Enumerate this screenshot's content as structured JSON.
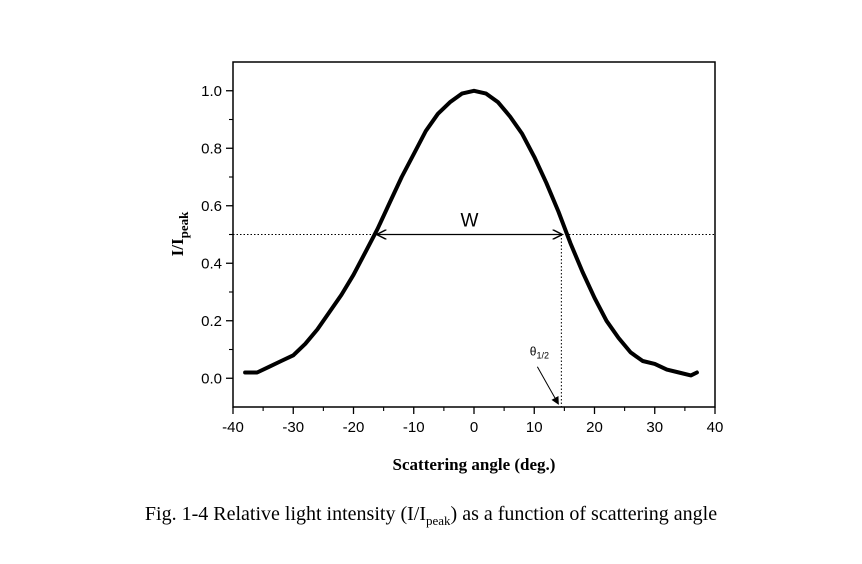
{
  "chart_data": {
    "type": "line",
    "xlabel": "Scattering angle (deg.)",
    "ylabel": {
      "main": "I/I",
      "sub": "peak"
    },
    "xlim": [
      -40,
      40
    ],
    "ylim": [
      -0.1,
      1.1
    ],
    "xticks": [
      -40,
      -30,
      -20,
      -10,
      0,
      10,
      20,
      30,
      40
    ],
    "yticks": [
      0.0,
      0.2,
      0.4,
      0.6,
      0.8,
      1.0
    ],
    "ytick_labels": [
      "0.0",
      "0.2",
      "0.4",
      "0.6",
      "0.8",
      "1.0"
    ],
    "grid": false,
    "legend": "none",
    "series": [
      {
        "x": [
          -38,
          -36,
          -34,
          -32,
          -30,
          -28,
          -26,
          -24,
          -22,
          -20,
          -18,
          -16,
          -14,
          -12,
          -10,
          -8,
          -6,
          -4,
          -2,
          0,
          2,
          4,
          6,
          8,
          10,
          12,
          14,
          16,
          18,
          20,
          22,
          24,
          26,
          28,
          30,
          32,
          34,
          36,
          37
        ],
        "y": [
          0.02,
          0.02,
          0.04,
          0.06,
          0.08,
          0.12,
          0.17,
          0.23,
          0.29,
          0.36,
          0.44,
          0.52,
          0.61,
          0.7,
          0.78,
          0.86,
          0.92,
          0.96,
          0.99,
          1.0,
          0.99,
          0.96,
          0.91,
          0.85,
          0.77,
          0.68,
          0.58,
          0.47,
          0.37,
          0.28,
          0.2,
          0.14,
          0.09,
          0.06,
          0.05,
          0.03,
          0.02,
          0.01,
          0.02
        ]
      }
    ],
    "annotations": {
      "half_max_level": 0.5,
      "width_label": "W",
      "width_arrow_x": [
        -16,
        14.5
      ],
      "theta_label": {
        "main": "θ",
        "sub": "1/2"
      },
      "theta_x": 14.5
    }
  },
  "caption": {
    "prefix": "Fig. 1-4 Relative light intensity (I/I",
    "sub": "peak",
    "suffix": ") as a function of scattering angle"
  }
}
